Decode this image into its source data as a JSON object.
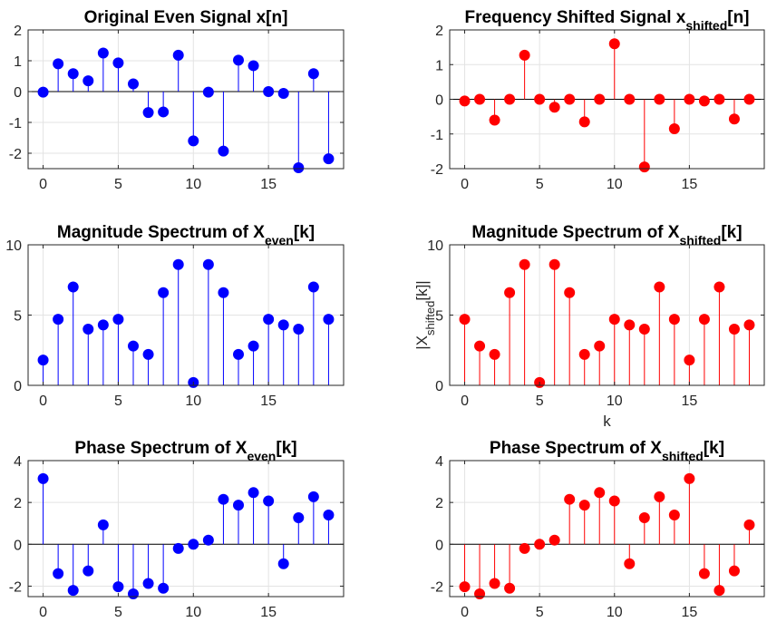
{
  "chart_data": [
    {
      "type": "stem",
      "title": "Original Even Signal x[n]",
      "title_parts": [
        {
          "text": "Original Even Signal x[n]",
          "sub": false
        }
      ],
      "xlabel": "",
      "ylabel": "",
      "color": "#0000ff",
      "xlim": [
        -1,
        20
      ],
      "ylim": [
        -2.5,
        2
      ],
      "xticks": [
        0,
        5,
        10,
        15
      ],
      "yticks": [
        -2,
        -1,
        0,
        1,
        2
      ],
      "x": [
        0,
        1,
        2,
        3,
        4,
        5,
        6,
        7,
        8,
        9,
        10,
        11,
        12,
        13,
        14,
        15,
        16,
        17,
        18,
        19
      ],
      "values": [
        -0.02,
        0.9,
        0.58,
        0.35,
        1.25,
        0.93,
        0.25,
        -0.68,
        -0.66,
        1.18,
        -1.6,
        -0.02,
        -1.93,
        1.02,
        0.84,
        0.0,
        -0.06,
        -2.47,
        0.58,
        -2.18
      ],
      "grid": true
    },
    {
      "type": "stem",
      "title": "Frequency Shifted Signal xshifted[n]",
      "title_parts": [
        {
          "text": "Frequency Shifted Signal x",
          "sub": false
        },
        {
          "text": "shifted",
          "sub": true
        },
        {
          "text": "[n]",
          "sub": false
        }
      ],
      "xlabel": "",
      "ylabel": "",
      "color": "#ff0000",
      "xlim": [
        -1,
        20
      ],
      "ylim": [
        -2,
        2
      ],
      "xticks": [
        0,
        5,
        10,
        15
      ],
      "yticks": [
        -2,
        -1,
        0,
        1,
        2
      ],
      "x": [
        0,
        1,
        2,
        3,
        4,
        5,
        6,
        7,
        8,
        9,
        10,
        11,
        12,
        13,
        14,
        15,
        16,
        17,
        18,
        19
      ],
      "values": [
        -0.05,
        0.0,
        -0.6,
        0.0,
        1.27,
        0.0,
        -0.23,
        0.0,
        -0.65,
        0.0,
        1.6,
        0.0,
        -1.95,
        0.0,
        -0.85,
        0.0,
        -0.05,
        0.0,
        -0.57,
        0.0
      ],
      "grid": true
    },
    {
      "type": "stem",
      "title": "Magnitude Spectrum of Xeven[k]",
      "title_parts": [
        {
          "text": "Magnitude Spectrum of X",
          "sub": false
        },
        {
          "text": "even",
          "sub": true
        },
        {
          "text": "[k]",
          "sub": false
        }
      ],
      "xlabel": "",
      "ylabel": "",
      "color": "#0000ff",
      "xlim": [
        -1,
        20
      ],
      "ylim": [
        0,
        10
      ],
      "xticks": [
        0,
        5,
        10,
        15
      ],
      "yticks": [
        0,
        5,
        10
      ],
      "x": [
        0,
        1,
        2,
        3,
        4,
        5,
        6,
        7,
        8,
        9,
        10,
        11,
        12,
        13,
        14,
        15,
        16,
        17,
        18,
        19
      ],
      "values": [
        1.8,
        4.7,
        7.0,
        4.0,
        4.3,
        4.7,
        2.8,
        2.2,
        6.6,
        8.6,
        0.2,
        8.6,
        6.6,
        2.2,
        2.8,
        4.7,
        4.3,
        4.0,
        7.0,
        4.7
      ],
      "grid": true
    },
    {
      "type": "stem",
      "title": "Magnitude Spectrum of Xshifted[k]",
      "title_parts": [
        {
          "text": "Magnitude Spectrum of X",
          "sub": false
        },
        {
          "text": "shifted",
          "sub": true
        },
        {
          "text": "[k]",
          "sub": false
        }
      ],
      "xlabel": "k",
      "ylabel": "|Xshifted[k]|",
      "ylabel_parts": [
        {
          "text": "|X",
          "sub": false
        },
        {
          "text": "shifted",
          "sub": true
        },
        {
          "text": "[k]|",
          "sub": false
        }
      ],
      "color": "#ff0000",
      "xlim": [
        -1,
        20
      ],
      "ylim": [
        0,
        10
      ],
      "xticks": [
        0,
        5,
        10,
        15
      ],
      "yticks": [
        0,
        5,
        10
      ],
      "x": [
        0,
        1,
        2,
        3,
        4,
        5,
        6,
        7,
        8,
        9,
        10,
        11,
        12,
        13,
        14,
        15,
        16,
        17,
        18,
        19
      ],
      "values": [
        4.7,
        2.8,
        2.2,
        6.6,
        8.6,
        0.2,
        8.6,
        6.6,
        2.2,
        2.8,
        4.7,
        4.3,
        4.0,
        7.0,
        4.7,
        1.8,
        4.7,
        7.0,
        4.0,
        4.3
      ],
      "grid": true
    },
    {
      "type": "stem",
      "title": "Phase Spectrum of Xeven[k]",
      "title_parts": [
        {
          "text": "Phase Spectrum of X",
          "sub": false
        },
        {
          "text": "even",
          "sub": true
        },
        {
          "text": "[k]",
          "sub": false
        }
      ],
      "xlabel": "",
      "ylabel": "",
      "color": "#0000ff",
      "xlim": [
        -1,
        20
      ],
      "ylim": [
        -2.5,
        4
      ],
      "xticks": [
        0,
        5,
        10,
        15
      ],
      "yticks": [
        -2,
        0,
        2,
        4
      ],
      "x": [
        0,
        1,
        2,
        3,
        4,
        5,
        6,
        7,
        8,
        9,
        10,
        11,
        12,
        13,
        14,
        15,
        16,
        17,
        18,
        19
      ],
      "values": [
        3.14,
        -1.4,
        -2.2,
        -1.27,
        0.93,
        -2.03,
        -2.37,
        -1.87,
        -2.1,
        -0.2,
        0.0,
        0.2,
        2.15,
        1.87,
        2.47,
        2.07,
        -0.93,
        1.27,
        2.27,
        1.4
      ],
      "grid": true
    },
    {
      "type": "stem",
      "title": "Phase Spectrum of Xshifted[k]",
      "title_parts": [
        {
          "text": "Phase Spectrum of X",
          "sub": false
        },
        {
          "text": "shifted",
          "sub": true
        },
        {
          "text": "[k]",
          "sub": false
        }
      ],
      "xlabel": "",
      "ylabel": "",
      "color": "#ff0000",
      "xlim": [
        -1,
        20
      ],
      "ylim": [
        -2.5,
        4
      ],
      "xticks": [
        0,
        5,
        10,
        15
      ],
      "yticks": [
        -2,
        0,
        2,
        4
      ],
      "x": [
        0,
        1,
        2,
        3,
        4,
        5,
        6,
        7,
        8,
        9,
        10,
        11,
        12,
        13,
        14,
        15,
        16,
        17,
        18,
        19
      ],
      "values": [
        -2.03,
        -2.37,
        -1.87,
        -2.1,
        -0.2,
        0.0,
        0.2,
        2.15,
        1.87,
        2.47,
        2.07,
        -0.93,
        1.27,
        2.27,
        1.4,
        3.14,
        -1.4,
        -2.2,
        -1.27,
        0.93
      ],
      "grid": true
    }
  ]
}
